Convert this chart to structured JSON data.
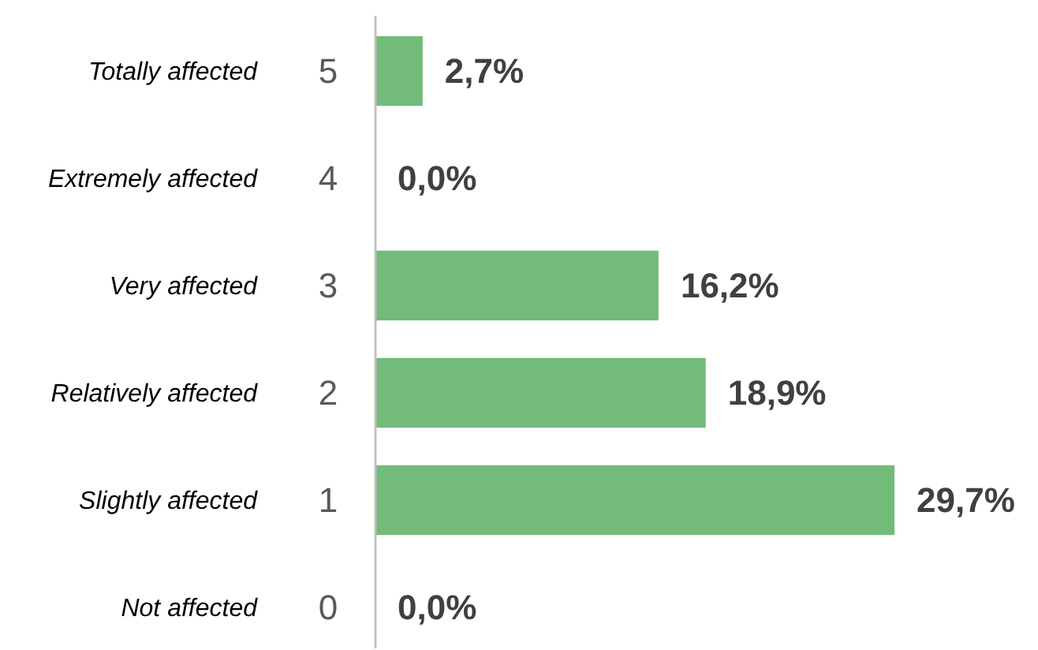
{
  "chart_data": {
    "type": "bar",
    "orientation": "horizontal",
    "categories": [
      "5",
      "4",
      "3",
      "2",
      "1",
      "0"
    ],
    "values": [
      2.7,
      0.0,
      16.2,
      18.9,
      29.7,
      0.0
    ],
    "value_labels": [
      "2,7%",
      "0,0%",
      "16,2%",
      "18,9%",
      "29,7%",
      "0,0%"
    ],
    "color": "#72bb78",
    "annotations": [
      "Totally affected",
      "Extremely affected",
      "Very affected",
      "Relatively affected",
      "Slightly affected",
      "Not affected"
    ]
  }
}
